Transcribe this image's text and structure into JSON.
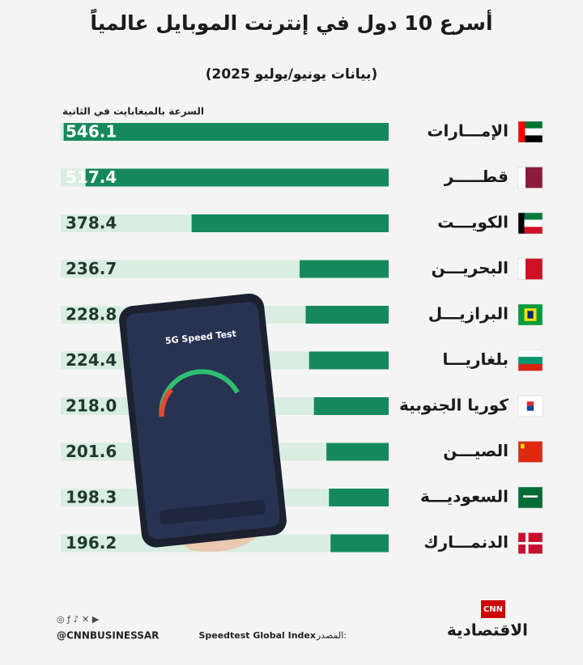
{
  "chart_data": {
    "type": "bar",
    "title": "أسرع 10 دول في إنترنت الموبايل عالمياً",
    "subtitle": "(بيانات يونيو/يوليو 2025)",
    "x_label": "السرعة بالميغابايت في الثانية",
    "categories": [
      "الإمـــارات",
      "قطـــــر",
      "الكويـــت",
      "البحريـــن",
      "البرازيـــل",
      "بلغاريـــا",
      "كوريا الجنوبية",
      "الصيـــن",
      "السعوديـــة",
      "الدنمـــارك"
    ],
    "values": [
      546.1,
      517.4,
      378.4,
      236.7,
      228.8,
      224.4,
      218.0,
      201.6,
      198.3,
      196.2
    ],
    "value_labels": [
      "546.1",
      "517.4",
      "378.4",
      "236.7",
      "228.8",
      "224.4",
      "218.0",
      "201.6",
      "198.3",
      "196.2"
    ],
    "color": "#15895d",
    "track_color": "#d9ede2",
    "xlim": [
      120,
      550
    ]
  },
  "phone_screen": {
    "title": "5G Speed Test"
  },
  "footer": {
    "handle": "@CNNBUSINESSAR",
    "source_label": "المصدر:",
    "source": "Speedtest Global Index",
    "logo": "CNN",
    "brand": "الاقتصادية"
  }
}
